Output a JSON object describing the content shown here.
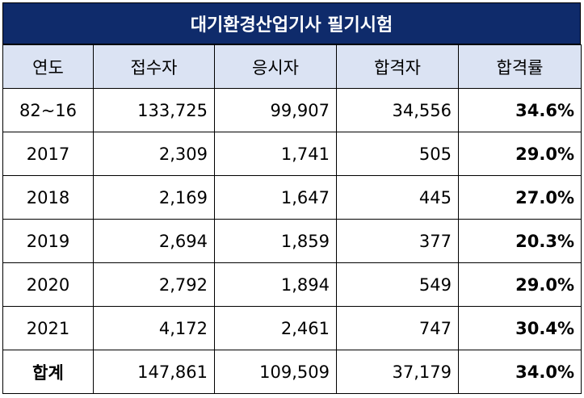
{
  "title": "대기환경산업기사 필기시험",
  "headers": [
    "연도",
    "접수자",
    "응시자",
    "합격자",
    "합격률"
  ],
  "rows": [
    {
      "year": "82~16",
      "applicants": "133,725",
      "examinees": "99,907",
      "passed": "34,556",
      "rate": "34.6%"
    },
    {
      "year": "2017",
      "applicants": "2,309",
      "examinees": "1,741",
      "passed": "505",
      "rate": "29.0%"
    },
    {
      "year": "2018",
      "applicants": "2,169",
      "examinees": "1,647",
      "passed": "445",
      "rate": "27.0%"
    },
    {
      "year": "2019",
      "applicants": "2,694",
      "examinees": "1,859",
      "passed": "377",
      "rate": "20.3%"
    },
    {
      "year": "2020",
      "applicants": "2,792",
      "examinees": "1,894",
      "passed": "549",
      "rate": "29.0%"
    },
    {
      "year": "2021",
      "applicants": "4,172",
      "examinees": "2,461",
      "passed": "747",
      "rate": "30.4%"
    }
  ],
  "total": {
    "year": "합계",
    "applicants": "147,861",
    "examinees": "109,509",
    "passed": "37,179",
    "rate": "34.0%"
  },
  "colors": {
    "title_bg": "#0f2b6b",
    "header_bg": "#dbe3f3"
  }
}
